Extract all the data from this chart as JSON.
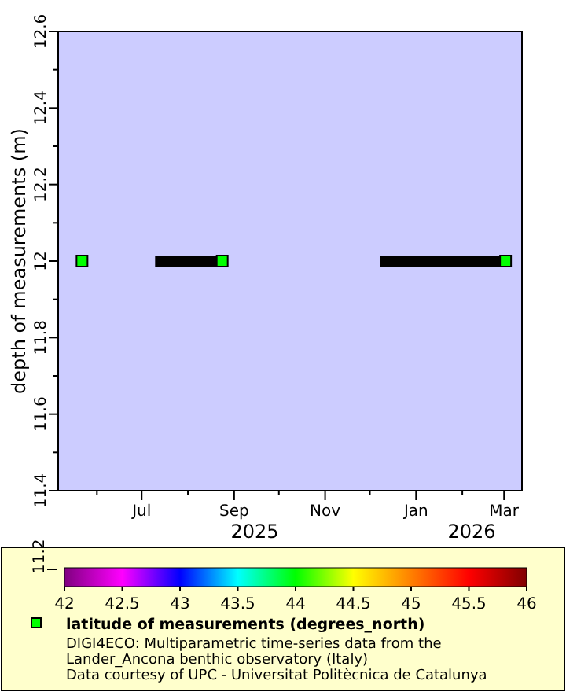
{
  "chart_data": {
    "type": "scatter",
    "ylabel": "depth of measurements (m)",
    "xlim": [
      "2025-05-06",
      "2026-03-13"
    ],
    "xticks": [
      {
        "value": "2025-06-01",
        "label": null
      },
      {
        "value": "2025-07-01",
        "label": "Jul"
      },
      {
        "value": "2025-08-01",
        "label": null
      },
      {
        "value": "2025-09-01",
        "label": "Sep"
      },
      {
        "value": "2025-10-01",
        "label": null
      },
      {
        "value": "2025-11-01",
        "label": "Nov"
      },
      {
        "value": "2025-12-01",
        "label": null
      },
      {
        "value": "2026-01-01",
        "label": "Jan"
      },
      {
        "value": "2026-02-01",
        "label": null
      },
      {
        "value": "2026-03-01",
        "label": "Mar"
      }
    ],
    "ylim": [
      11.4,
      12.6
    ],
    "yticks": [
      11.4,
      {
        "value": 11.5,
        "label": null
      },
      11.6,
      {
        "value": 11.7,
        "label": null
      },
      11.8,
      {
        "value": 11.9,
        "label": null
      },
      12,
      {
        "value": 12.1,
        "label": null
      },
      12.2,
      {
        "value": 12.3,
        "label": null
      },
      12.4,
      {
        "value": 12.5,
        "label": null
      },
      12.6
    ],
    "clim": [
      42,
      46
    ],
    "cticks": [
      42,
      42.5,
      43,
      43.5,
      44,
      44.5,
      45,
      45.5,
      46
    ],
    "grid": false,
    "legend": "bottom",
    "marker": "square",
    "series": [
      {
        "type": "line",
        "marker": "none",
        "color": "#000000",
        "x": [
          "2025-07-10",
          "2025-08-24",
          null,
          "2025-12-08",
          "2026-03-02"
        ],
        "values": [
          12,
          12,
          null,
          12,
          12
        ]
      },
      {
        "name": "latitude of measurements (degrees_north)",
        "color": "#00ff00",
        "x": [
          "2025-05-22",
          "2025-08-24",
          "2026-03-02"
        ],
        "values": [
          12,
          12,
          12
        ],
        "cvalues": [
          44,
          44,
          44
        ]
      }
    ],
    "annotations": [
      "2025",
      "2026",
      "11.2",
      "DIGI4ECO: Multiparametric time-series data from the",
      "Lander_Ancona benthic observatory (Italy)",
      "Data courtesy of UPC - Universitat Politècnica de Catalunya"
    ]
  }
}
